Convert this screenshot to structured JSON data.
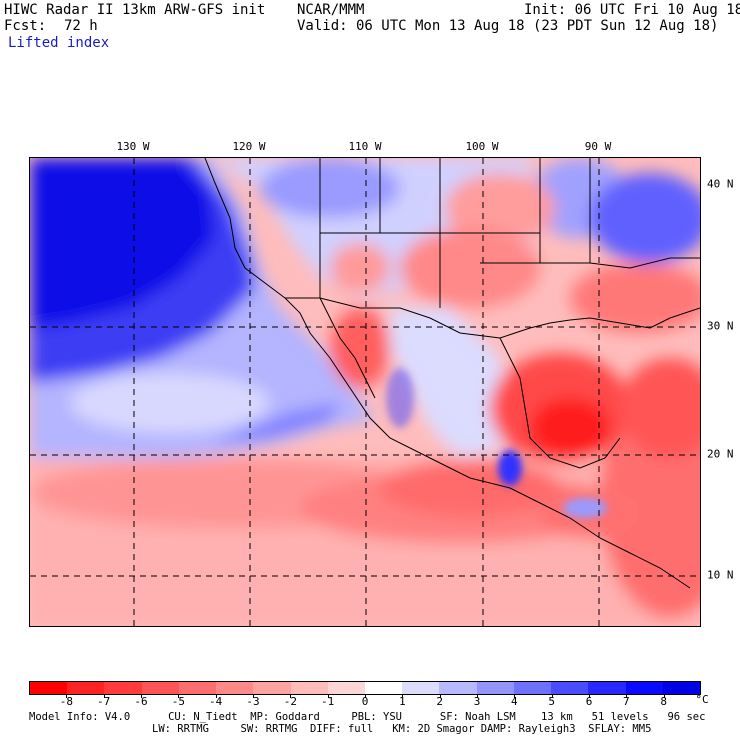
{
  "header": {
    "title": "HIWC Radar II 13km ARW-GFS init",
    "org": "NCAR/MMM",
    "init": "Init: 06 UTC Fri 10 Aug 18",
    "fcst_label": "Fcst:",
    "fcst_value": "72 h",
    "valid": "Valid: 06 UTC Mon 13 Aug 18 (23 PDT Sun 12 Aug 18)",
    "field": "Lifted index"
  },
  "map": {
    "lon_labels": [
      "130 W",
      "120 W",
      "110 W",
      "100 W",
      "90 W"
    ],
    "lat_labels": [
      "40 N",
      "30 N",
      "20 N",
      "10 N"
    ]
  },
  "colorbar": {
    "unit": "°C",
    "ticks": [
      "-8",
      "-7",
      "-6",
      "-5",
      "-4",
      "-3",
      "-2",
      "-1",
      "0",
      "1",
      "2",
      "3",
      "4",
      "5",
      "6",
      "7",
      "8"
    ],
    "colors": [
      "#ff0000",
      "#ff2222",
      "#ff3b3b",
      "#ff5555",
      "#ff6e6e",
      "#ff8888",
      "#ffa2a2",
      "#ffbcbc",
      "#ffd6d6",
      "#ffffff",
      "#dcdcff",
      "#b8b8ff",
      "#9494ff",
      "#7070ff",
      "#4c4cff",
      "#2828ff",
      "#0a0aff",
      "#0000e6"
    ]
  },
  "model_info": {
    "line1": "Model Info: V4.0      CU: N_Tiedt  MP: Goddard     PBL: YSU      SF: Noah LSM    13 km   51 levels   96 sec",
    "line2": "LW: RRTMG     SW: RRTMG  DIFF: full   KM: 2D Smagor DAMP: Rayleigh3  SFLAY: MM5"
  }
}
